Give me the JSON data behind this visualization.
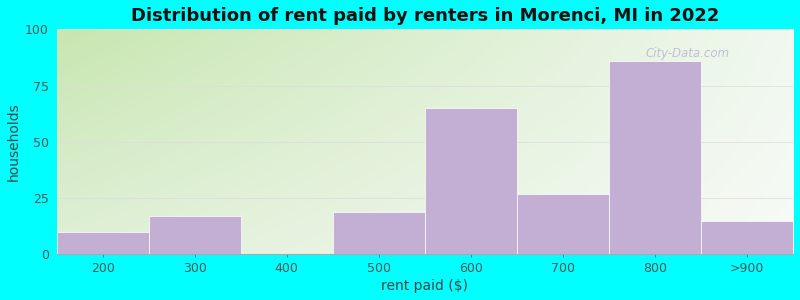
{
  "title": "Distribution of rent paid by renters in Morenci, MI in 2022",
  "xlabel": "rent paid ($)",
  "ylabel": "households",
  "categories": [
    "200",
    "300",
    "400",
    "500",
    "600",
    "700",
    "800",
    ">900"
  ],
  "values": [
    10,
    17,
    0,
    19,
    65,
    27,
    86,
    15
  ],
  "bar_color": "#c4afd4",
  "bar_edgecolor": "#c4afd4",
  "ylim": [
    0,
    100
  ],
  "yticks": [
    0,
    25,
    50,
    75,
    100
  ],
  "title_fontsize": 13,
  "axis_label_fontsize": 10,
  "tick_fontsize": 9,
  "bg_topleft": "#c8e6b0",
  "bg_bottomright": "#f0f5ee",
  "bg_topright": "#e8f5e2",
  "fig_bg_color": "#00ffff",
  "watermark": "City-Data.com",
  "grid_color": "#dddddd"
}
